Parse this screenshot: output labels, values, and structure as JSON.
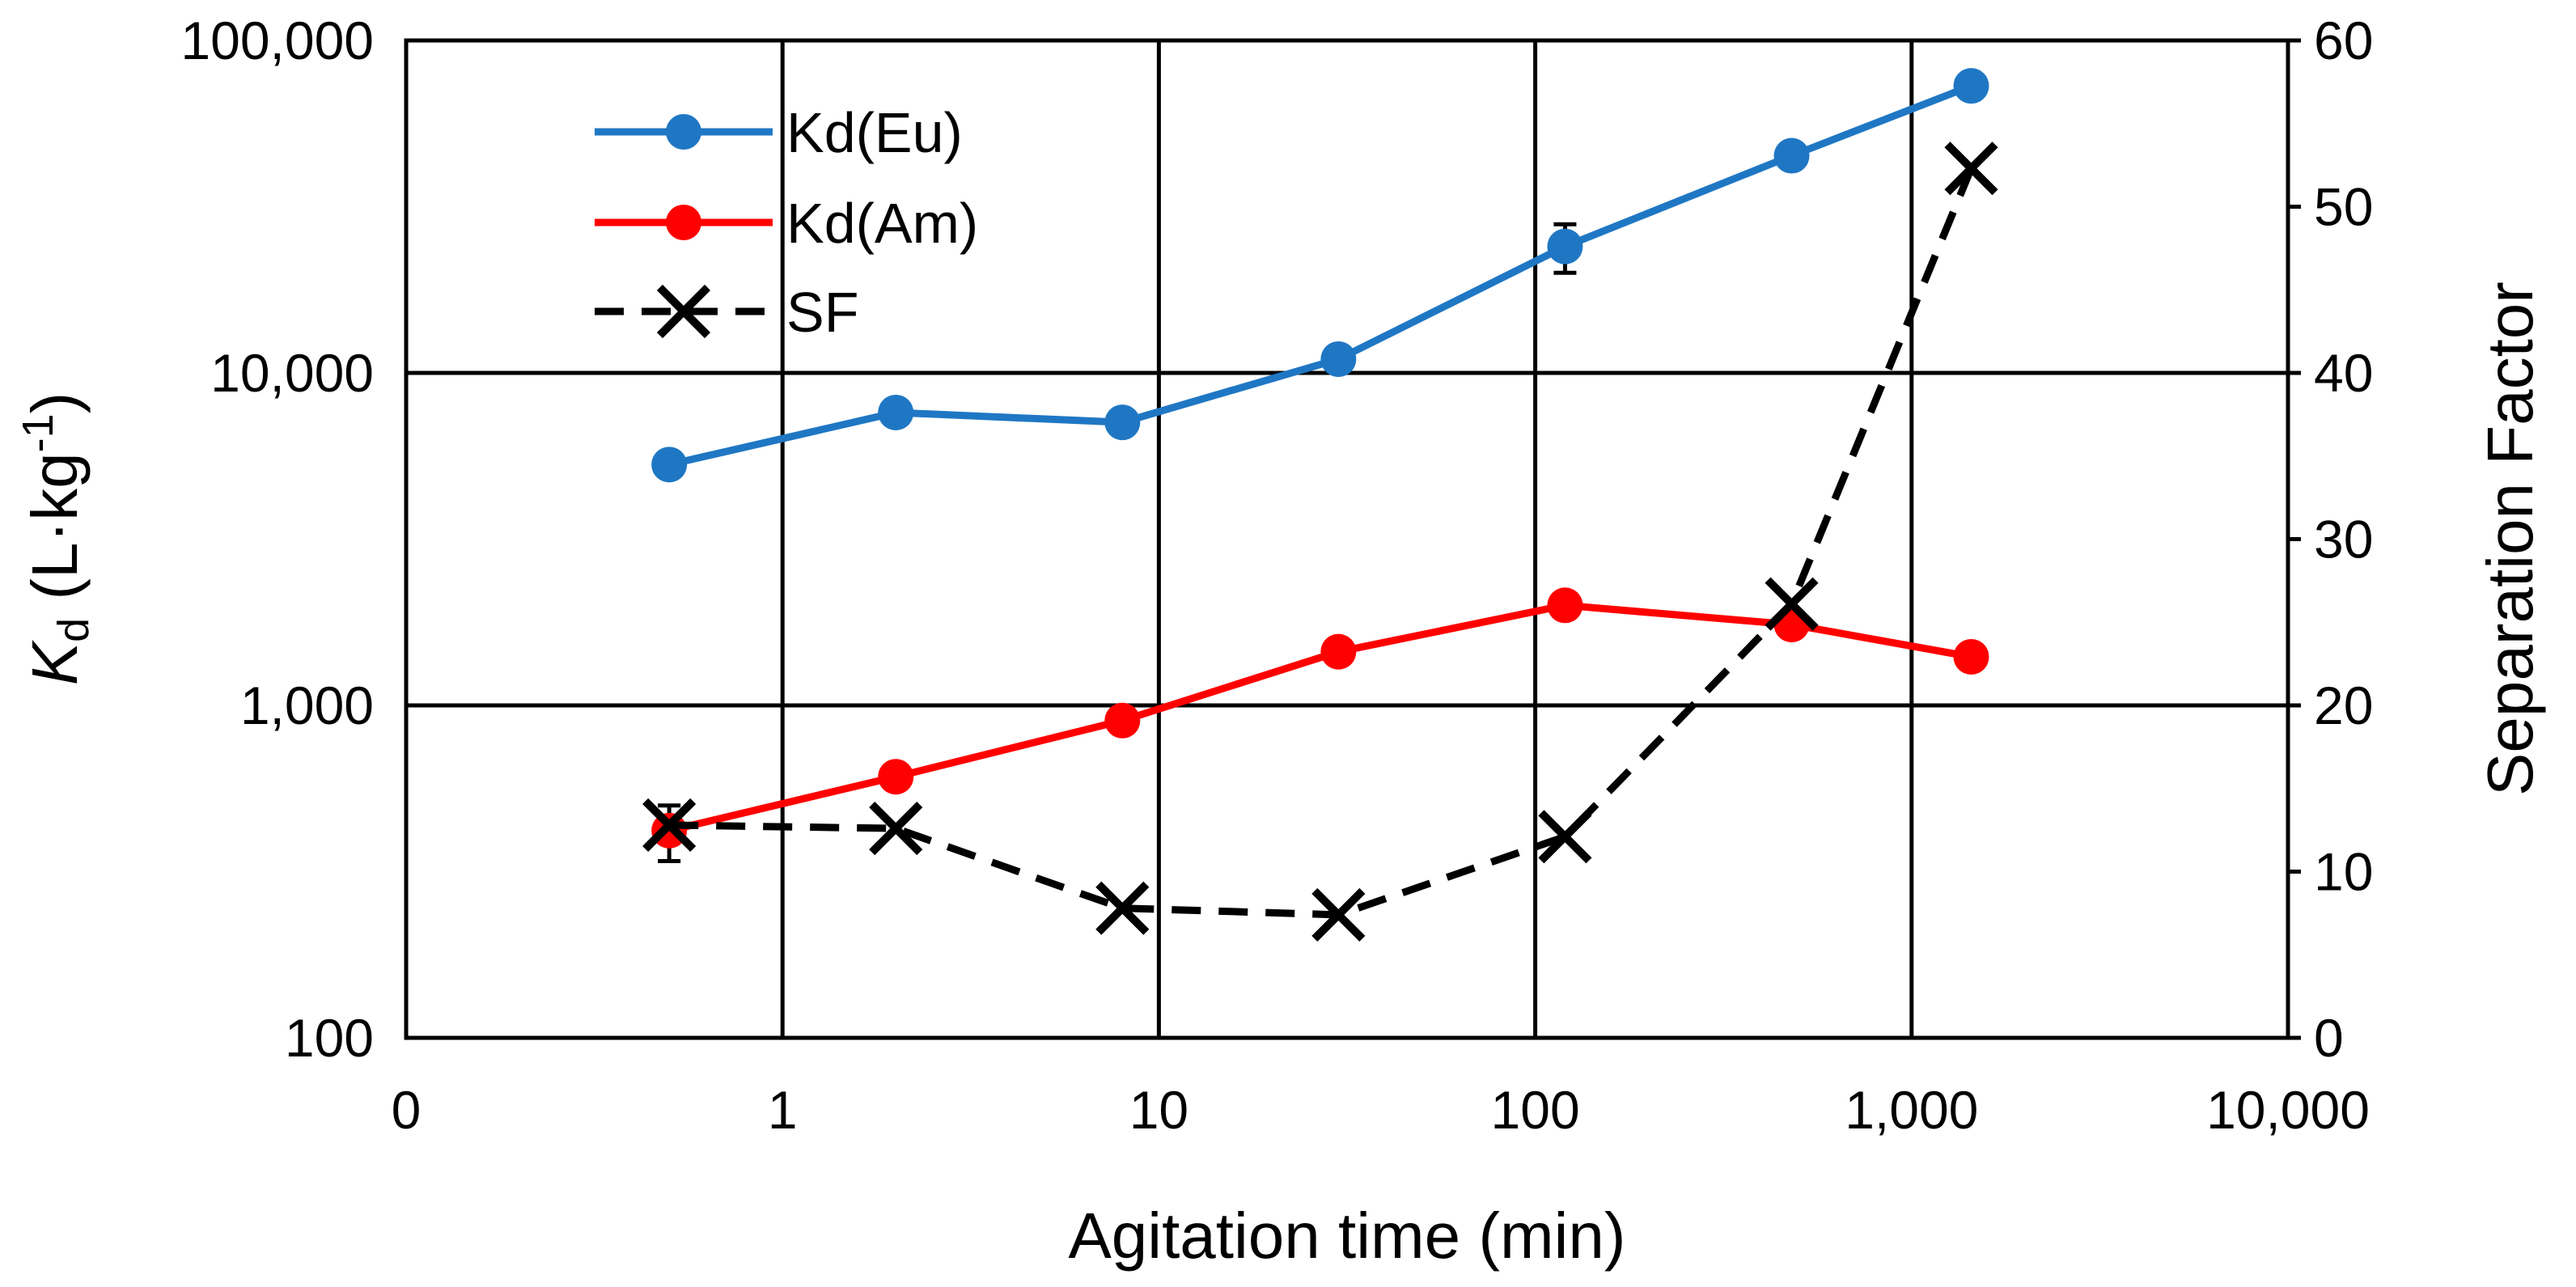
{
  "chart_data": {
    "type": "line",
    "xlabel": "Agitation time (min)",
    "ylabel_left_symbol": "K",
    "ylabel_left_sub": "d",
    "ylabel_left_unit_pre": " (L·kg",
    "ylabel_left_unit_sup": "-1",
    "ylabel_left_unit_post": ")",
    "ylabel_right": "Separation Factor",
    "x_scale": "log",
    "x_ticks": [
      {
        "value": 0.1,
        "label": "0"
      },
      {
        "value": 1,
        "label": "1"
      },
      {
        "value": 10,
        "label": "10"
      },
      {
        "value": 100,
        "label": "100"
      },
      {
        "value": 1000,
        "label": "1,000"
      },
      {
        "value": 10000,
        "label": "10,000"
      }
    ],
    "y_left_scale": "log",
    "y_left_lim": [
      100,
      100000
    ],
    "y_left_ticks": [
      {
        "value": 100,
        "label": "100"
      },
      {
        "value": 1000,
        "label": "1,000"
      },
      {
        "value": 10000,
        "label": "10,000"
      },
      {
        "value": 100000,
        "label": "100,000"
      }
    ],
    "y_right_lim": [
      0,
      60
    ],
    "y_right_ticks": [
      {
        "value": 0,
        "label": "0"
      },
      {
        "value": 10,
        "label": "10"
      },
      {
        "value": 20,
        "label": "20"
      },
      {
        "value": 30,
        "label": "30"
      },
      {
        "value": 40,
        "label": "40"
      },
      {
        "value": 50,
        "label": "50"
      },
      {
        "value": 60,
        "label": "60"
      }
    ],
    "series": [
      {
        "name": "Kd(Eu)",
        "axis": "left",
        "color": "#1f77c4",
        "style": "solid-circle",
        "x": [
          0.5,
          2,
          8,
          30,
          120,
          480,
          1440
        ],
        "y": [
          5300,
          7600,
          7100,
          11000,
          24000,
          45000,
          73000
        ],
        "error": [
          0,
          0,
          500,
          0,
          4000,
          0,
          0
        ]
      },
      {
        "name": "Kd(Am)",
        "axis": "left",
        "color": "#ff0000",
        "style": "solid-circle",
        "x": [
          0.5,
          2,
          8,
          30,
          120,
          480,
          1440
        ],
        "y": [
          420,
          610,
          900,
          1450,
          2000,
          1750,
          1400
        ],
        "error": [
          80,
          0,
          0,
          0,
          0,
          0,
          0
        ]
      },
      {
        "name": "SF",
        "axis": "right",
        "color": "#000000",
        "style": "dashed-x",
        "x": [
          0.5,
          2,
          8,
          30,
          120,
          480,
          1440
        ],
        "y": [
          12.8,
          12.6,
          7.8,
          7.4,
          12.1,
          26.1,
          52.3
        ]
      }
    ]
  }
}
